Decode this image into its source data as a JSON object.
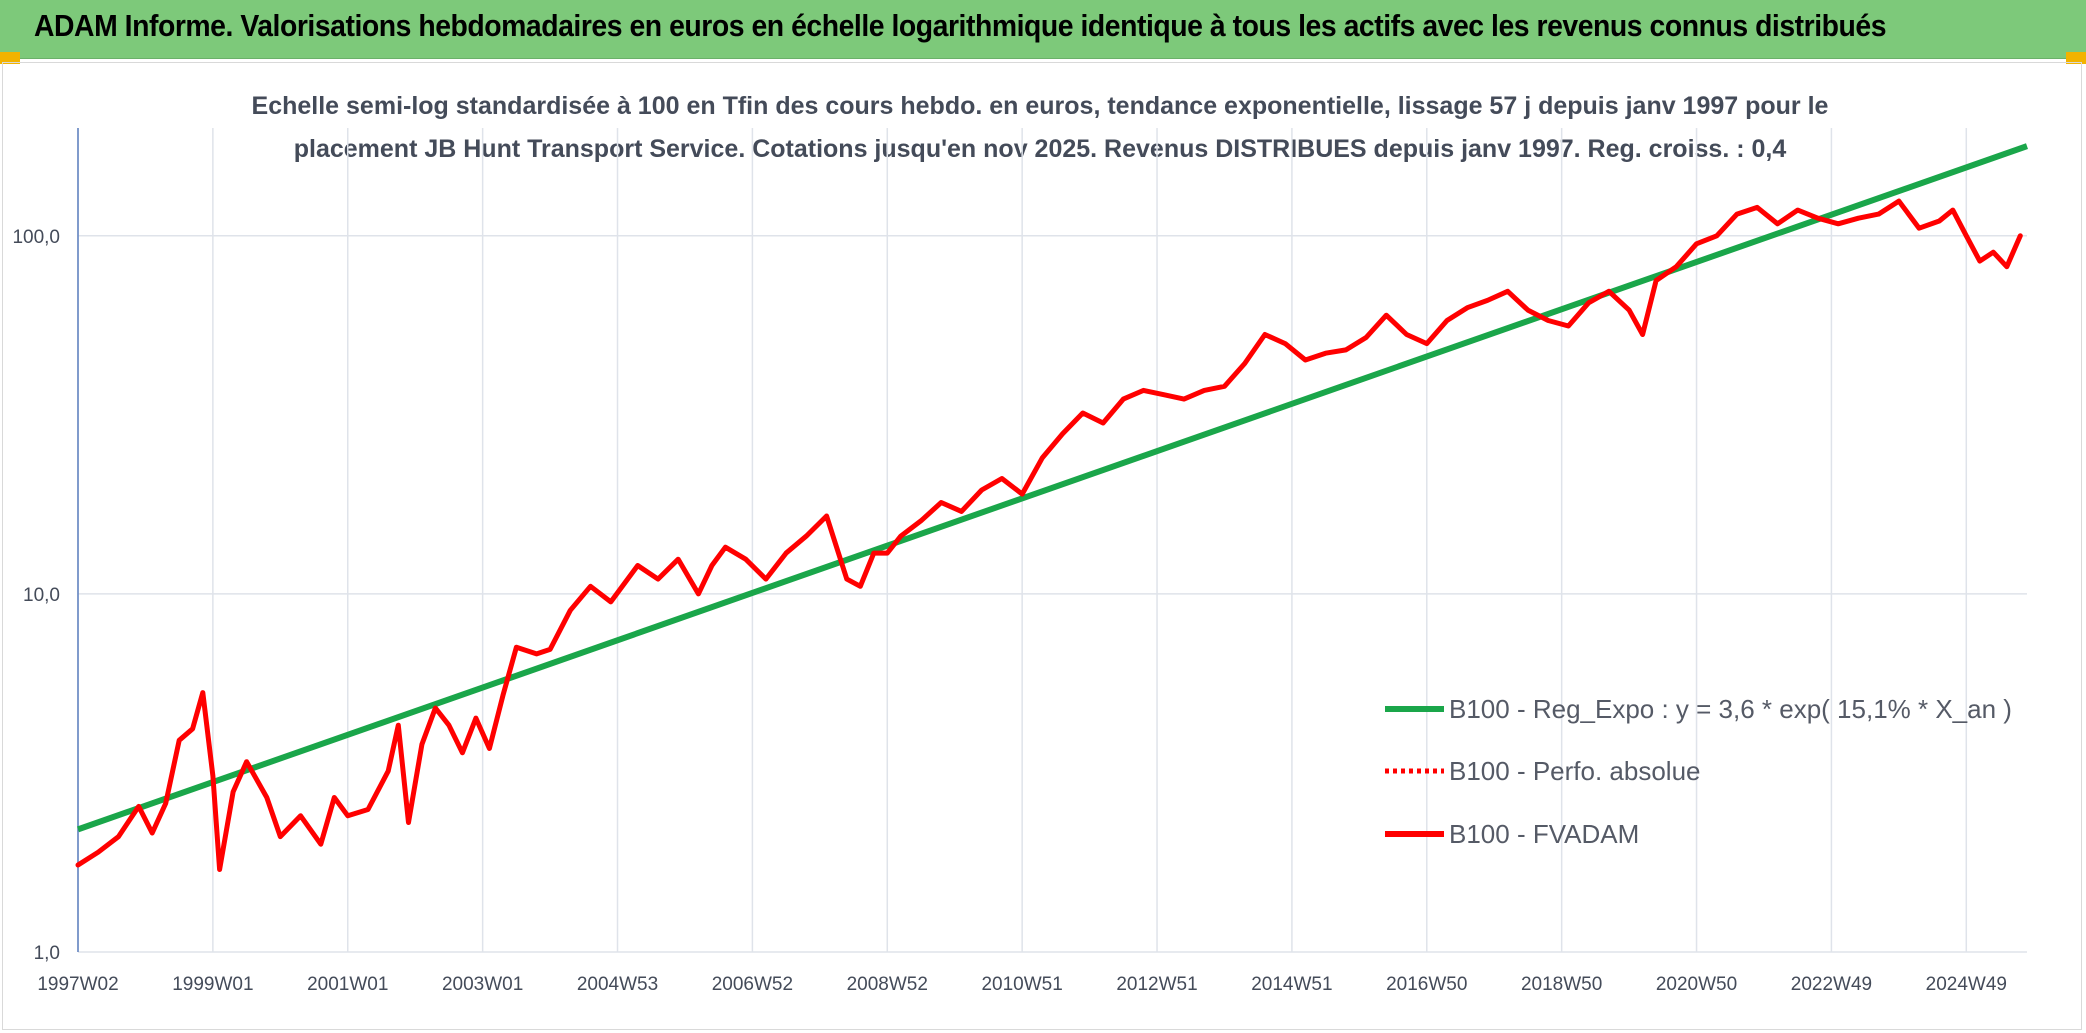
{
  "banner": {
    "title": "ADAM Informe. Valorisations hebdomadaires en euros en échelle logarithmique identique à tous les actifs avec les revenus connus distribués"
  },
  "colors": {
    "banner_bg": "#7dc97a",
    "corner_marks": "#f2b300",
    "regression_line": "#1aa64a",
    "performance_line": "#ff0000",
    "grid": "#dfe3ea"
  },
  "chart_data": {
    "type": "line",
    "title_lines": [
      "Echelle semi-log standardisée à 100 en Tfin des cours hebdo. en euros, tendance exponentielle, lissage 57 j depuis janv 1997 pour le",
      "placement JB Hunt Transport Service. Cotations jusqu'en nov 2025. Revenus DISTRIBUES depuis janv 1997. Reg. croiss. : 0,4"
    ],
    "y_scale": "log",
    "ylim": [
      1,
      200
    ],
    "y_ticks": [
      {
        "value": 1,
        "label": "1,0"
      },
      {
        "value": 10,
        "label": "10,0"
      },
      {
        "value": 100,
        "label": "100,0"
      }
    ],
    "xlim": [
      1997.0,
      2025.9
    ],
    "x_ticks": [
      {
        "value": 1997.0,
        "label": "1997W02"
      },
      {
        "value": 1999.0,
        "label": "1999W01"
      },
      {
        "value": 2001.0,
        "label": "2001W01"
      },
      {
        "value": 2003.0,
        "label": "2003W01"
      },
      {
        "value": 2005.0,
        "label": "2004W53"
      },
      {
        "value": 2007.0,
        "label": "2006W52"
      },
      {
        "value": 2009.0,
        "label": "2008W52"
      },
      {
        "value": 2011.0,
        "label": "2010W51"
      },
      {
        "value": 2013.0,
        "label": "2012W51"
      },
      {
        "value": 2015.0,
        "label": "2014W51"
      },
      {
        "value": 2017.0,
        "label": "2016W50"
      },
      {
        "value": 2019.0,
        "label": "2018W50"
      },
      {
        "value": 2021.0,
        "label": "2020W50"
      },
      {
        "value": 2023.0,
        "label": "2022W49"
      },
      {
        "value": 2025.0,
        "label": "2024W49"
      }
    ],
    "grid": true,
    "legend_position": "bottom-right",
    "series": [
      {
        "name": "B100 - Reg_Expo : y = 3,6 * exp( 15,1% *  X_an )",
        "style": "solid-green",
        "x": [
          1997.0,
          2025.9
        ],
        "y": [
          2.2,
          178
        ]
      },
      {
        "name": "B100 - Perfo. absolue",
        "style": "dotted-red",
        "x": [],
        "y": []
      },
      {
        "name": "B100 - FVADAM",
        "style": "solid-red",
        "x": [
          1997.0,
          1997.3,
          1997.6,
          1997.9,
          1998.1,
          1998.3,
          1998.5,
          1998.7,
          1998.85,
          1999.0,
          1999.1,
          1999.3,
          1999.5,
          1999.8,
          2000.0,
          2000.3,
          2000.6,
          2000.8,
          2001.0,
          2001.3,
          2001.6,
          2001.75,
          2001.9,
          2002.1,
          2002.3,
          2002.5,
          2002.7,
          2002.9,
          2003.1,
          2003.3,
          2003.5,
          2003.8,
          2004.0,
          2004.3,
          2004.6,
          2004.9,
          2005.3,
          2005.6,
          2005.9,
          2006.2,
          2006.4,
          2006.6,
          2006.9,
          2007.2,
          2007.5,
          2007.8,
          2008.1,
          2008.4,
          2008.6,
          2008.8,
          2009.0,
          2009.2,
          2009.5,
          2009.8,
          2010.1,
          2010.4,
          2010.7,
          2011.0,
          2011.3,
          2011.6,
          2011.9,
          2012.2,
          2012.5,
          2012.8,
          2013.1,
          2013.4,
          2013.7,
          2014.0,
          2014.3,
          2014.6,
          2014.9,
          2015.2,
          2015.5,
          2015.8,
          2016.1,
          2016.4,
          2016.7,
          2017.0,
          2017.3,
          2017.6,
          2017.9,
          2018.2,
          2018.5,
          2018.8,
          2019.1,
          2019.4,
          2019.7,
          2020.0,
          2020.2,
          2020.4,
          2020.7,
          2021.0,
          2021.3,
          2021.6,
          2021.9,
          2022.2,
          2022.5,
          2022.8,
          2023.1,
          2023.4,
          2023.7,
          2024.0,
          2024.3,
          2024.6,
          2024.8,
          2025.0,
          2025.2,
          2025.4,
          2025.6,
          2025.8
        ],
        "y": [
          1.75,
          1.9,
          2.1,
          2.55,
          2.15,
          2.6,
          3.9,
          4.2,
          5.3,
          3.1,
          1.7,
          2.8,
          3.4,
          2.7,
          2.1,
          2.4,
          2.0,
          2.7,
          2.4,
          2.5,
          3.2,
          4.3,
          2.3,
          3.8,
          4.8,
          4.3,
          3.6,
          4.5,
          3.7,
          5.2,
          7.1,
          6.8,
          7.0,
          9.0,
          10.5,
          9.5,
          12.0,
          11.0,
          12.5,
          10.0,
          12.0,
          13.5,
          12.5,
          11.0,
          13.0,
          14.5,
          16.5,
          11.0,
          10.5,
          13.0,
          13.0,
          14.5,
          16.0,
          18.0,
          17.0,
          19.5,
          21.0,
          19.0,
          24.0,
          28.0,
          32.0,
          30.0,
          35.0,
          37.0,
          36.0,
          35.0,
          37.0,
          38.0,
          44.0,
          53.0,
          50.0,
          45.0,
          47.0,
          48.0,
          52.0,
          60.0,
          53.0,
          50.0,
          58.0,
          63.0,
          66.0,
          70.0,
          62.0,
          58.0,
          56.0,
          65.0,
          70.0,
          62.0,
          53.0,
          75.0,
          82.0,
          95.0,
          100.0,
          115.0,
          120.0,
          108.0,
          118.0,
          112.0,
          108.0,
          112.0,
          115.0,
          125.0,
          105.0,
          110.0,
          118.0,
          100.0,
          85.0,
          90.0,
          82.0,
          100.0
        ]
      }
    ]
  }
}
